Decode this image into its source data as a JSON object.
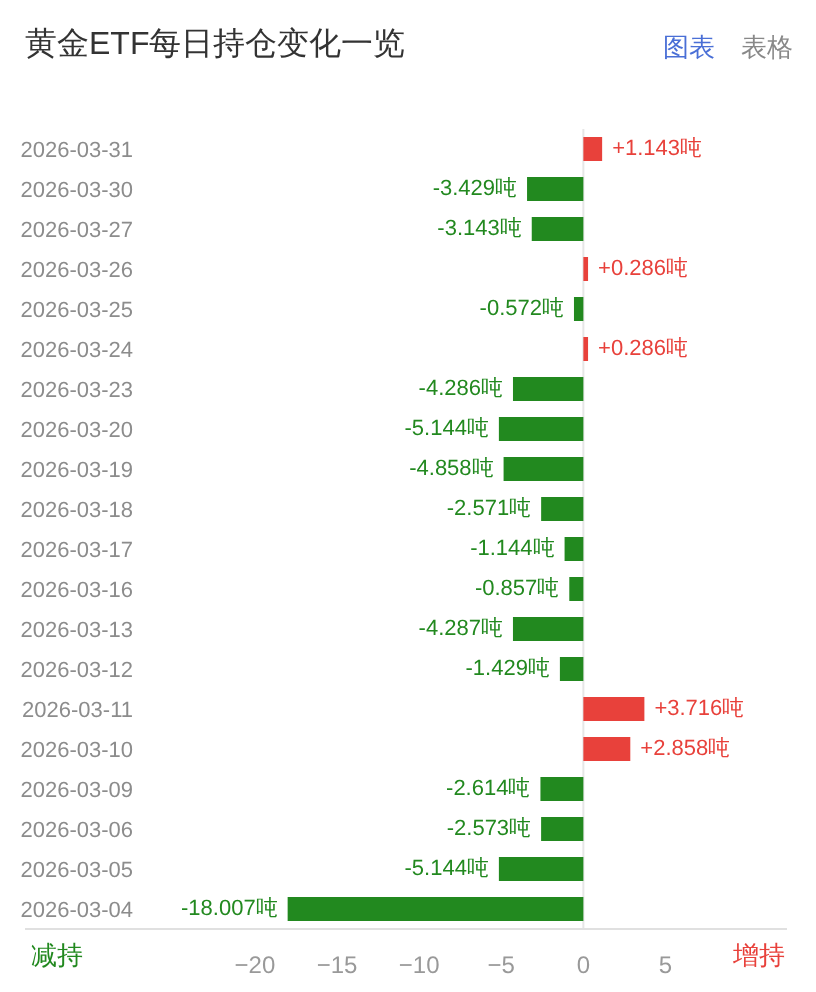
{
  "chart_data": {
    "type": "bar",
    "orientation": "horizontal",
    "title": "黄金ETF每日持仓变化一览",
    "categories": [
      "2026-03-31",
      "2026-03-30",
      "2026-03-27",
      "2026-03-26",
      "2026-03-25",
      "2026-03-24",
      "2026-03-23",
      "2026-03-20",
      "2026-03-19",
      "2026-03-18",
      "2026-03-17",
      "2026-03-16",
      "2026-03-13",
      "2026-03-12",
      "2026-03-11",
      "2026-03-10",
      "2026-03-09",
      "2026-03-06",
      "2026-03-05",
      "2026-03-04"
    ],
    "values": [
      1.143,
      -3.429,
      -3.143,
      0.286,
      -0.572,
      0.286,
      -4.286,
      -5.144,
      -4.858,
      -2.571,
      -1.144,
      -0.857,
      -4.287,
      -1.429,
      3.716,
      2.858,
      -2.614,
      -2.573,
      -5.144,
      -18.007
    ],
    "colors": [
      "#e8413b",
      "#22891f",
      "#22891f",
      "#e8413b",
      "#22891f",
      "#e8413b",
      "#22891f",
      "#22891f",
      "#22891f",
      "#22891f",
      "#22891f",
      "#22891f",
      "#22891f",
      "#22891f",
      "#e8413b",
      "#e8413b",
      "#22891f",
      "#22891f",
      "#22891f",
      "#22891f"
    ],
    "value_labels": [
      "+1.143吨",
      "-3.429吨",
      "-3.143吨",
      "+0.286吨",
      "-0.572吨",
      "+0.286吨",
      "-4.286吨",
      "-5.144吨",
      "-4.858吨",
      "-2.571吨",
      "-1.144吨",
      "-0.857吨",
      "-4.287吨",
      "-1.429吨",
      "+3.716吨",
      "+2.858吨",
      "-2.614吨",
      "-2.573吨",
      "-5.144吨",
      "-18.007吨"
    ],
    "xlim": [
      -34,
      12.4
    ],
    "xticks": [
      -20,
      -15,
      -10,
      -5,
      0,
      5
    ],
    "grid": false,
    "ref_lines": [
      {
        "axis": "x",
        "value": 0,
        "color": "#e6e6e6"
      }
    ],
    "annotations": [
      "图表",
      "表格",
      "减持",
      "增持"
    ]
  }
}
